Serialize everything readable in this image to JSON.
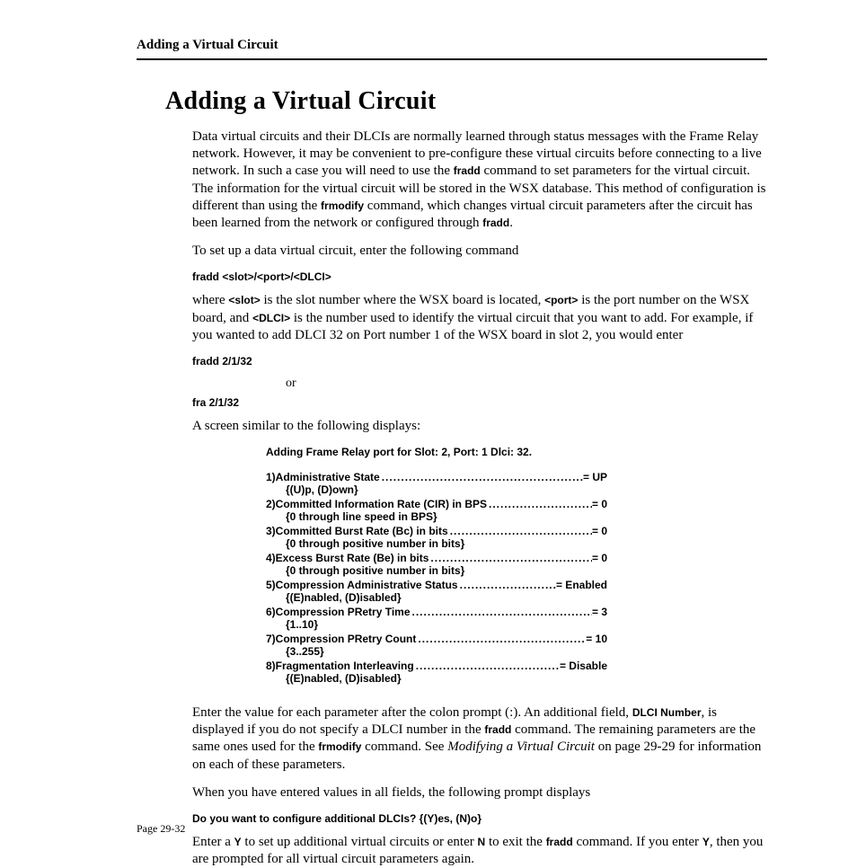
{
  "running_head": "Adding a Virtual Circuit",
  "title": "Adding a Virtual Circuit",
  "intro_p1_a": "Data virtual circuits and their DLCIs are normally learned through status messages with the Frame Relay network. However, it may be convenient to pre-configure these virtual circuits before connecting to a live network. In such a case you will need to use the ",
  "intro_p1_cmd1": "fradd",
  "intro_p1_b": " command to set parameters for the virtual circuit. The information for the virtual circuit will be stored in the WSX database. This method of configuration is different than using the ",
  "intro_p1_cmd2": "frmodify",
  "intro_p1_c": " command, which changes virtual circuit parameters after the circuit has been learned from the network or configured through ",
  "intro_p1_cmd3": "fradd",
  "intro_p1_d": ".",
  "p2": "To set up a data virtual circuit, enter the following command",
  "cmd_syntax": "fradd <slot>/<port>/<DLCI>",
  "p3_a": "where ",
  "p3_slot": "<slot>",
  "p3_b": " is the slot number where the WSX board is located, ",
  "p3_port": "<port>",
  "p3_c": " is the port number on the WSX board, and ",
  "p3_dlci": "<DLCI>",
  "p3_d": " is the number used to identify the virtual circuit that you want to add. For example, if you wanted to add DLCI 32 on Port number 1 of the WSX board in slot 2, you would enter",
  "cmd_ex1": "fradd 2/1/32",
  "or": "or",
  "cmd_ex2": "fra 2/1/32",
  "p4": "A screen similar to the following displays:",
  "screen_header": "Adding Frame Relay port for Slot: 2, Port: 1 Dlci: 32.",
  "params": [
    {
      "n": "1)",
      "label": " Administrative State",
      "val": "= UP",
      "hint": "{(U)p, (D)own}"
    },
    {
      "n": "2)",
      "label": " Committed Information Rate (CIR) in BPS",
      "val": "= 0",
      "hint": "{0 through line speed in BPS}"
    },
    {
      "n": "3)",
      "label": " Committed Burst Rate (Bc) in bits",
      "val": "= 0",
      "hint": "{0 through positive number in bits}"
    },
    {
      "n": "4)",
      "label": " Excess Burst Rate (Be) in bits",
      "val": "= 0",
      "hint": "{0 through positive number in bits}"
    },
    {
      "n": "5)",
      "label": " Compression Administrative Status",
      "val": "= Enabled",
      "hint": "{(E)nabled, (D)isabled}"
    },
    {
      "n": "6)",
      "label": " Compression PRetry Time",
      "val": "= 3",
      "hint": "{1..10}"
    },
    {
      "n": "7)",
      "label": " Compression PRetry Count",
      "val": "= 10",
      "hint": "{3..255}"
    },
    {
      "n": "8)",
      "label": " Fragmentation Interleaving",
      "val": "= Disable",
      "hint": "{(E)nabled, (D)isabled}"
    }
  ],
  "p5_a": "Enter the value for each parameter after the colon prompt (:). An additional field, ",
  "p5_dlci_num": "DLCI Number",
  "p5_b": ", is displayed if you do not specify a DLCI number in the ",
  "p5_cmd1": "fradd",
  "p5_c": " command. The remaining parameters are the same ones used for the ",
  "p5_cmd2": "frmodify",
  "p5_d": " command. See ",
  "p5_ref": "Modifying a Virtual Circuit",
  "p5_e": " on page 29-29 for information on each of these parameters.",
  "p6": "When you have entered values in all fields, the following prompt displays",
  "prompt": "Do you want to configure additional DLCIs? {(Y)es, (N)o}",
  "p7_a": "Enter a ",
  "p7_y": "Y",
  "p7_b": " to set up additional virtual circuits or enter ",
  "p7_n": "N",
  "p7_c": " to exit the ",
  "p7_cmd": "fradd",
  "p7_d": " command. If you enter ",
  "p7_y2": "Y",
  "p7_e": ", then you are prompted for all virtual circuit parameters again.",
  "page_num": "Page 29-32"
}
